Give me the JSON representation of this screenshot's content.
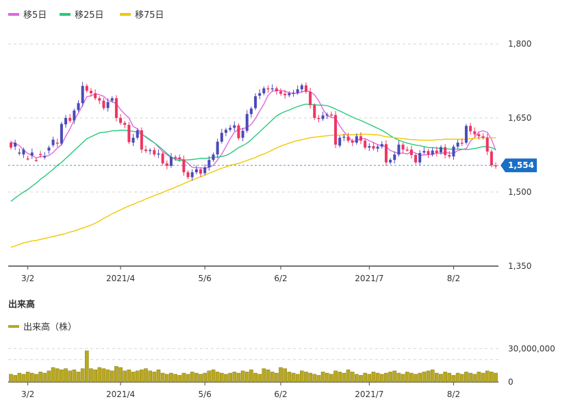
{
  "colors": {
    "up": "#ef3461",
    "down": "#4a4ab8",
    "ma5": "#e066e0",
    "ma25": "#27c97a",
    "ma75": "#f0c800",
    "volume": "#b8a823",
    "volume_stroke": "#8a7d10",
    "badge": "#1a6fc4",
    "grid": "#d6d6d6",
    "axis": "#444444"
  },
  "legend": [
    {
      "label": "移5日",
      "color_key": "ma5"
    },
    {
      "label": "移25日",
      "color_key": "ma25"
    },
    {
      "label": "移75日",
      "color_key": "ma75"
    }
  ],
  "volume_section": {
    "title": "出来高",
    "legend_label": "出来高（株）"
  },
  "x_labels": [
    "3/2",
    "2021/4",
    "5/6",
    "6/2",
    "2021/7",
    "8/2"
  ],
  "x_label_index": [
    4,
    26,
    46,
    64,
    85,
    105
  ],
  "price_axis": {
    "ticks": [
      1800,
      1650,
      1500,
      1350
    ],
    "tick_labels": [
      "1,800",
      "1,650",
      "1,500",
      "1,350"
    ],
    "range": [
      1350,
      1800
    ],
    "current_value": 1554,
    "current_label": "1,554"
  },
  "volume_axis": {
    "ticks": [
      30000000,
      0
    ],
    "tick_labels": [
      "30,000,000",
      "0"
    ],
    "range": [
      0,
      40000000
    ]
  },
  "chart_data": {
    "type": "candlestick",
    "price": {
      "close": [
        1600,
        1592,
        1578,
        1576,
        1568,
        1574,
        1565,
        1577,
        1570,
        1584,
        1595,
        1600,
        1598,
        1637,
        1650,
        1645,
        1666,
        1680,
        1715,
        1705,
        1700,
        1690,
        1685,
        1670,
        1685,
        1690,
        1650,
        1640,
        1636,
        1600,
        1610,
        1625,
        1586,
        1583,
        1585,
        1576,
        1578,
        1558,
        1553,
        1571,
        1570,
        1566,
        1540,
        1530,
        1540,
        1546,
        1538,
        1550,
        1565,
        1576,
        1602,
        1620,
        1626,
        1630,
        1635,
        1610,
        1624,
        1658,
        1670,
        1695,
        1700,
        1710,
        1708,
        1710,
        1704,
        1699,
        1696,
        1700,
        1701,
        1708,
        1716,
        1703,
        1676,
        1650,
        1648,
        1655,
        1657,
        1656,
        1594,
        1610,
        1612,
        1604,
        1600,
        1613,
        1604,
        1590,
        1593,
        1588,
        1592,
        1597,
        1560,
        1565,
        1576,
        1596,
        1586,
        1586,
        1575,
        1560,
        1580,
        1583,
        1576,
        1584,
        1580,
        1591,
        1575,
        1572,
        1592,
        1600,
        1600,
        1634,
        1623,
        1617,
        1613,
        1610,
        1582,
        1554
      ],
      "open": [
        1590,
        1600,
        1580,
        1586,
        1568,
        1580,
        1565,
        1576,
        1573,
        1590,
        1606,
        1598,
        1638,
        1650,
        1644,
        1665,
        1680,
        1715,
        1705,
        1700,
        1690,
        1685,
        1670,
        1682,
        1690,
        1650,
        1640,
        1636,
        1601,
        1610,
        1625,
        1586,
        1583,
        1585,
        1576,
        1578,
        1558,
        1553,
        1571,
        1570,
        1566,
        1540,
        1530,
        1540,
        1546,
        1537,
        1550,
        1565,
        1576,
        1602,
        1620,
        1626,
        1630,
        1635,
        1609,
        1624,
        1658,
        1669,
        1694,
        1700,
        1710,
        1708,
        1710,
        1704,
        1699,
        1696,
        1700,
        1701,
        1708,
        1716,
        1703,
        1676,
        1650,
        1648,
        1655,
        1657,
        1656,
        1596,
        1610,
        1612,
        1604,
        1600,
        1613,
        1604,
        1590,
        1593,
        1588,
        1592,
        1597,
        1560,
        1565,
        1576,
        1596,
        1586,
        1586,
        1575,
        1560,
        1579,
        1583,
        1576,
        1584,
        1579,
        1591,
        1575,
        1572,
        1592,
        1600,
        1600,
        1634,
        1623,
        1617,
        1613,
        1610,
        1582,
        1554,
        1554
      ]
    },
    "series": [
      {
        "name": "移5日",
        "values": [
          1601,
          1598,
          1594,
          1585,
          1578,
          1574,
          1569,
          1572,
          1572,
          1574,
          1580,
          1589,
          1596,
          1613,
          1628,
          1646,
          1660,
          1676,
          1693,
          1695,
          1699,
          1697,
          1694,
          1685,
          1683,
          1679,
          1667,
          1658,
          1650,
          1633,
          1628,
          1618,
          1611,
          1605,
          1600,
          1591,
          1582,
          1576,
          1569,
          1568,
          1567,
          1565,
          1558,
          1550,
          1549,
          1549,
          1548,
          1550,
          1554,
          1565,
          1577,
          1592,
          1608,
          1621,
          1627,
          1628,
          1631,
          1637,
          1649,
          1664,
          1678,
          1696,
          1704,
          1706,
          1706,
          1704,
          1701,
          1700,
          1700,
          1703,
          1705,
          1703,
          1697,
          1685,
          1668,
          1655,
          1651,
          1650,
          1634,
          1622,
          1613,
          1602,
          1604,
          1608,
          1608,
          1604,
          1600,
          1596,
          1594,
          1592,
          1584,
          1581,
          1578,
          1579,
          1577,
          1582,
          1579,
          1575,
          1575,
          1576,
          1576,
          1579,
          1578,
          1580,
          1579,
          1578,
          1584,
          1586,
          1588,
          1603,
          1611,
          1622,
          1624,
          1621,
          1607,
          1584
        ]
      },
      {
        "name": "移25日",
        "values": [
          1481,
          1488,
          1494,
          1500,
          1505,
          1512,
          1518,
          1526,
          1532,
          1539,
          1546,
          1554,
          1560,
          1568,
          1576,
          1584,
          1592,
          1600,
          1608,
          1612,
          1616,
          1620,
          1621,
          1622,
          1624,
          1624,
          1625,
          1625,
          1624,
          1623,
          1621,
          1617,
          1612,
          1606,
          1600,
          1593,
          1586,
          1578,
          1571,
          1566,
          1563,
          1565,
          1565,
          1566,
          1567,
          1568,
          1568,
          1569,
          1570,
          1571,
          1572,
          1574,
          1578,
          1584,
          1590,
          1594,
          1599,
          1606,
          1614,
          1622,
          1630,
          1638,
          1646,
          1654,
          1659,
          1663,
          1666,
          1670,
          1673,
          1676,
          1678,
          1677,
          1677,
          1676,
          1676,
          1675,
          1672,
          1668,
          1664,
          1660,
          1656,
          1652,
          1648,
          1645,
          1641,
          1637,
          1633,
          1629,
          1625,
          1620,
          1614,
          1609,
          1605,
          1602,
          1599,
          1597,
          1595,
          1594,
          1592,
          1590,
          1590,
          1589,
          1588,
          1588,
          1587,
          1587,
          1587,
          1587,
          1586,
          1587,
          1588,
          1590,
          1592,
          1592,
          1590,
          1586
        ]
      },
      {
        "name": "移75日",
        "values": [
          1388,
          1391,
          1394,
          1397,
          1399,
          1401,
          1402,
          1404,
          1406,
          1408,
          1410,
          1412,
          1414,
          1416,
          1419,
          1421,
          1424,
          1427,
          1430,
          1433,
          1437,
          1441,
          1447,
          1451,
          1456,
          1460,
          1464,
          1468,
          1472,
          1475,
          1479,
          1482,
          1486,
          1489,
          1493,
          1496,
          1499,
          1503,
          1506,
          1510,
          1513,
          1517,
          1521,
          1524,
          1528,
          1531,
          1534,
          1538,
          1541,
          1545,
          1548,
          1551,
          1554,
          1556,
          1558,
          1561,
          1564,
          1567,
          1570,
          1574,
          1577,
          1581,
          1585,
          1589,
          1593,
          1596,
          1599,
          1602,
          1604,
          1606,
          1608,
          1610,
          1611,
          1612,
          1613,
          1614,
          1615,
          1615,
          1615,
          1616,
          1616,
          1616,
          1616,
          1617,
          1617,
          1617,
          1616,
          1616,
          1614,
          1612,
          1611,
          1610,
          1609,
          1608,
          1607,
          1606,
          1606,
          1605,
          1605,
          1605,
          1605,
          1606,
          1606,
          1607,
          1607,
          1607,
          1607,
          1607,
          1607,
          1608,
          1609,
          1610,
          1610,
          1610,
          1610,
          1610
        ]
      }
    ],
    "volume": [
      7,
      6,
      8,
      7,
      9,
      8,
      7,
      9,
      8,
      10,
      13,
      12,
      11,
      12,
      10,
      11,
      9,
      12,
      28,
      12,
      11,
      13,
      12,
      11,
      10,
      14,
      13,
      10,
      11,
      9,
      10,
      11,
      12,
      10,
      9,
      11,
      8,
      7,
      8,
      7,
      6,
      8,
      7,
      9,
      8,
      7,
      8,
      10,
      11,
      9,
      8,
      7,
      8,
      9,
      8,
      10,
      9,
      11,
      8,
      7,
      12,
      11,
      9,
      8,
      13,
      12,
      9,
      8,
      7,
      10,
      9,
      8,
      7,
      6,
      9,
      8,
      7,
      10,
      9,
      8,
      11,
      9,
      7,
      6,
      8,
      7,
      9,
      8,
      7,
      8,
      9,
      10,
      8,
      7,
      9,
      8,
      7,
      8,
      9,
      10,
      11,
      8,
      7,
      9,
      8,
      6,
      8,
      7,
      9,
      8,
      7,
      9,
      8,
      10,
      9,
      8
    ]
  }
}
